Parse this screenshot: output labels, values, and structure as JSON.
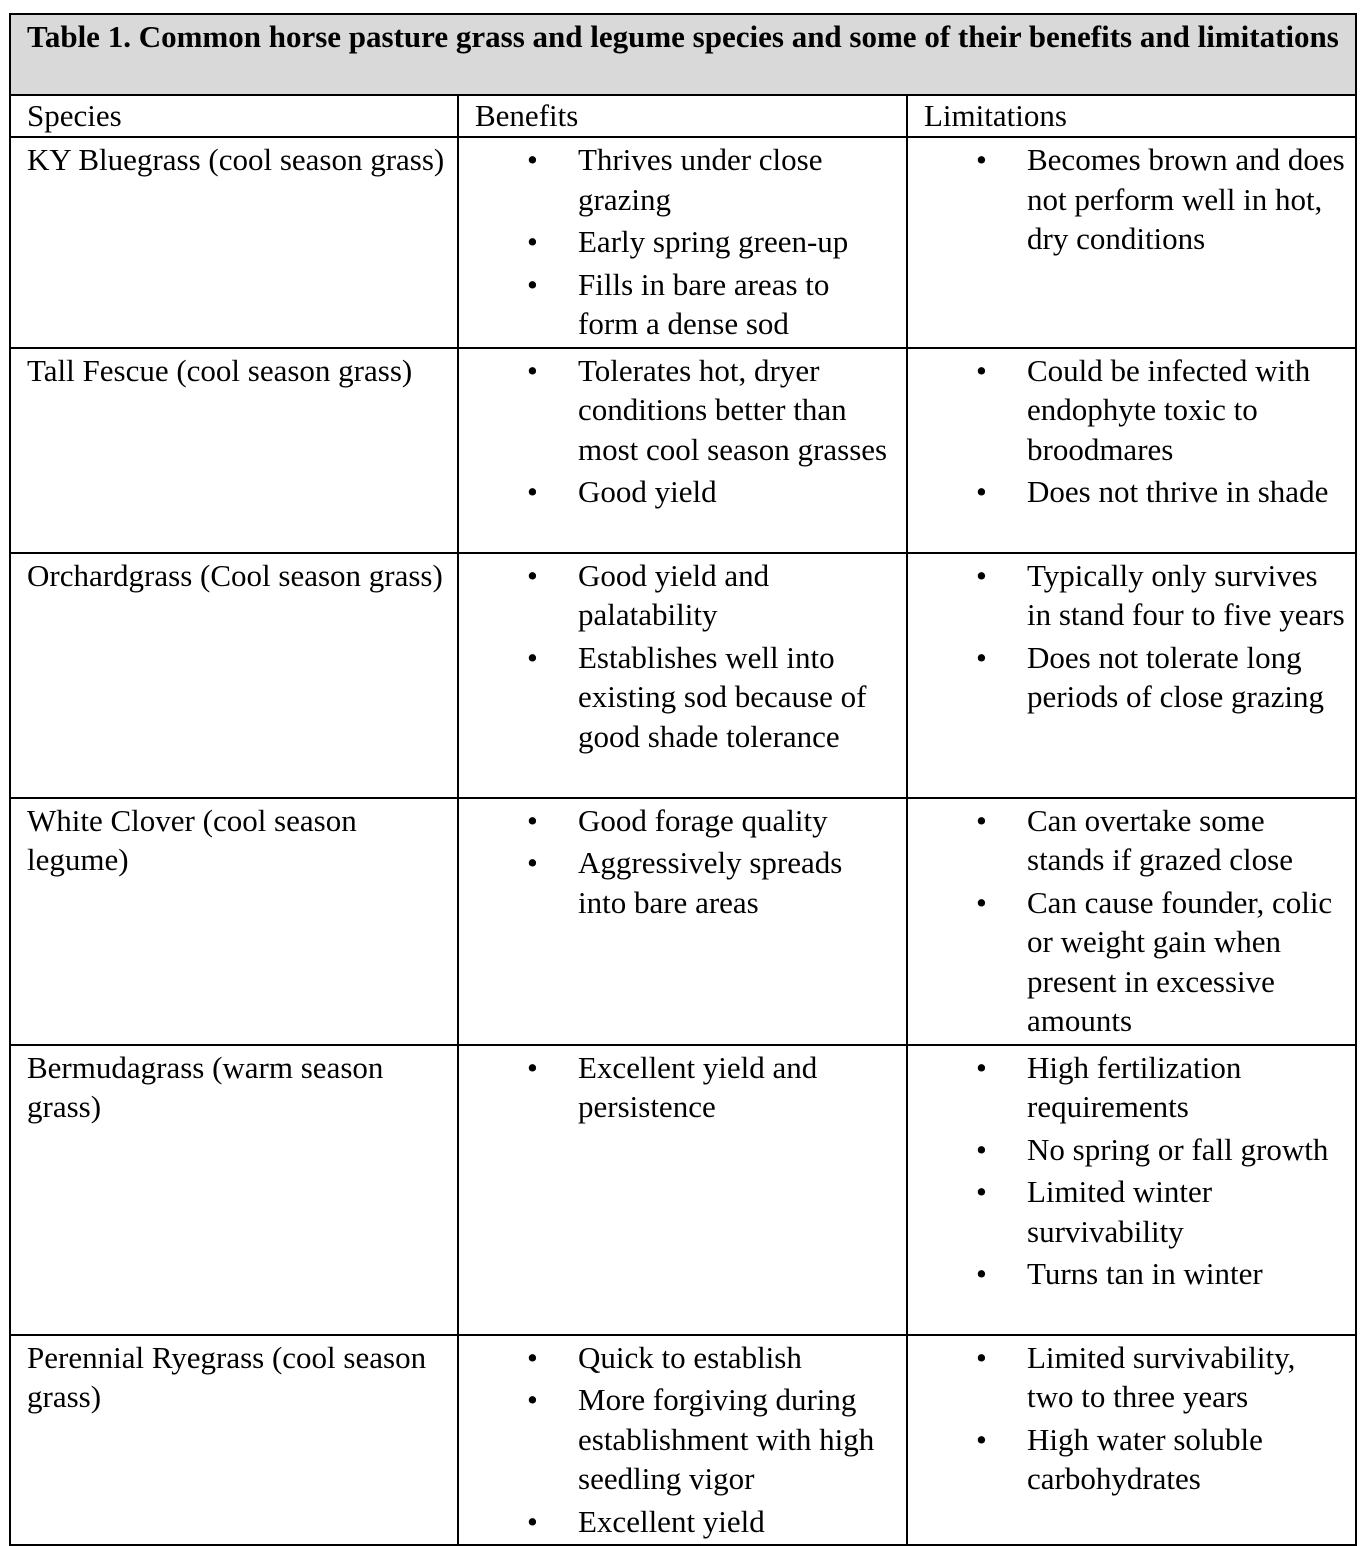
{
  "title": "Table 1. Common horse pasture grass and legume species and some of their benefits and limitations",
  "columns": [
    "Species",
    "Benefits",
    "Limitations"
  ],
  "rows": [
    {
      "species": "KY Bluegrass (cool season grass)",
      "benefits": [
        "Thrives under close grazing",
        "Early spring green-up",
        "Fills in bare areas to form a dense sod"
      ],
      "limitations": [
        "Becomes brown and does not perform well in hot, dry conditions"
      ]
    },
    {
      "species": "Tall Fescue (cool season grass)",
      "benefits": [
        "Tolerates hot, dryer conditions better than most cool season grasses",
        "Good yield"
      ],
      "limitations": [
        "Could be infected with endophyte toxic to broodmares",
        "Does not thrive in shade"
      ]
    },
    {
      "species": "Orchardgrass (Cool season grass)",
      "benefits": [
        "Good yield and palatability",
        "Establishes well into existing sod because of good shade tolerance"
      ],
      "limitations": [
        "Typically only survives in stand four to five years",
        "Does not tolerate long periods of close grazing"
      ]
    },
    {
      "species": "White Clover (cool season legume)",
      "benefits": [
        "Good forage quality",
        "Aggressively spreads into bare areas"
      ],
      "limitations": [
        "Can overtake some stands if grazed close",
        "Can cause founder, colic or weight gain when present in excessive amounts"
      ]
    },
    {
      "species": "Bermudagrass (warm season grass)",
      "benefits": [
        "Excellent yield and persistence"
      ],
      "limitations": [
        "High fertilization requirements",
        "No spring or fall growth",
        "Limited winter survivability",
        "Turns tan in winter"
      ]
    },
    {
      "species": "Perennial Ryegrass (cool season grass)",
      "benefits": [
        "Quick to establish",
        "More forgiving during establishment with high seedling vigor",
        "Excellent yield"
      ],
      "limitations": [
        "Limited survivability, two to three years",
        "High water soluble carbohydrates"
      ]
    }
  ],
  "header_color": "#d9d9d9"
}
